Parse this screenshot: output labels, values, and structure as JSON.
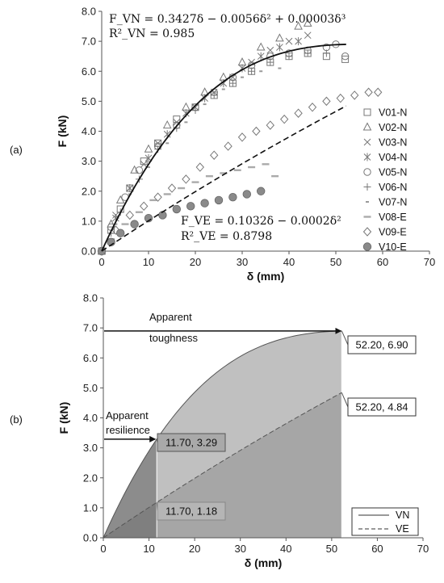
{
  "chart_data": [
    {
      "type": "scatter",
      "panel_label": "(a)",
      "xlabel": "δ (mm)",
      "ylabel": "F (kN)",
      "xlim": [
        0,
        70
      ],
      "ylim": [
        0,
        8
      ],
      "xticks": [
        "0",
        "10",
        "20",
        "30",
        "40",
        "50",
        "60",
        "70"
      ],
      "yticks": [
        "0.0",
        "1.0",
        "2.0",
        "3.0",
        "4.0",
        "5.0",
        "6.0",
        "7.0",
        "8.0"
      ],
      "legend_position": "right",
      "equations": {
        "vn_fit": "F_VN = 0.3427δ − 0.0056δ² + 0.00003δ³",
        "vn_r2": "R²_VN = 0.985",
        "ve_fit": "F_VE = 0.1032δ − 0.0002δ²",
        "ve_r2": "R²_VE = 0.8798"
      },
      "fit_lines": [
        {
          "style": "solid",
          "x_range": [
            0,
            52.2
          ],
          "coefficients": [
            0.3427,
            -0.0056,
            3e-05
          ]
        },
        {
          "style": "dashed",
          "x_range": [
            0,
            52.2
          ],
          "coefficients": [
            0.1032,
            -0.0002,
            0
          ]
        }
      ],
      "series": [
        {
          "name": "V01-N",
          "marker": "square",
          "x": [
            0,
            2,
            4,
            6,
            9,
            12,
            16,
            20,
            24,
            28,
            32,
            36,
            40,
            44,
            48,
            52
          ],
          "y": [
            0,
            0.7,
            1.4,
            2.1,
            3.0,
            3.6,
            4.4,
            4.8,
            5.2,
            5.6,
            6.0,
            6.3,
            6.5,
            6.6,
            6.5,
            6.4
          ]
        },
        {
          "name": "V02-N",
          "marker": "triangle",
          "x": [
            0,
            2,
            4,
            7,
            10,
            14,
            18,
            22,
            26,
            30,
            34,
            38,
            42,
            44
          ],
          "y": [
            0,
            0.9,
            1.7,
            2.7,
            3.4,
            4.2,
            4.8,
            5.3,
            5.8,
            6.3,
            6.8,
            7.1,
            7.5,
            7.6
          ]
        },
        {
          "name": "V03-N",
          "marker": "x",
          "x": [
            0,
            3,
            6,
            9,
            12,
            16,
            20,
            24,
            28,
            32,
            36,
            40,
            44
          ],
          "y": [
            0,
            1.2,
            2.1,
            2.9,
            3.6,
            4.3,
            4.8,
            5.3,
            5.8,
            6.3,
            6.7,
            7.0,
            7.2
          ]
        },
        {
          "name": "V04-N",
          "marker": "asterisk",
          "x": [
            0,
            3,
            6,
            10,
            14,
            18,
            22,
            26,
            30,
            34,
            38,
            42
          ],
          "y": [
            0,
            1.1,
            2.1,
            3.1,
            3.9,
            4.6,
            5.1,
            5.6,
            6.1,
            6.5,
            6.8,
            7.0
          ]
        },
        {
          "name": "V05-N",
          "marker": "circle",
          "x": [
            0,
            2,
            5,
            8,
            12,
            16,
            20,
            24,
            28,
            32,
            36,
            40,
            44,
            48,
            50,
            52
          ],
          "y": [
            0,
            0.8,
            1.8,
            2.7,
            3.5,
            4.2,
            4.8,
            5.3,
            5.8,
            6.2,
            6.5,
            6.6,
            6.7,
            6.8,
            6.9,
            6.5
          ]
        },
        {
          "name": "V06-N",
          "marker": "plus",
          "x": [
            0,
            2,
            4,
            8,
            12,
            16,
            20,
            24,
            28,
            32,
            36,
            40,
            44,
            48
          ],
          "y": [
            0,
            0.6,
            1.3,
            2.4,
            3.4,
            4.1,
            4.7,
            5.2,
            5.6,
            6.0,
            6.3,
            6.5,
            6.6,
            6.6
          ]
        },
        {
          "name": "V07-N",
          "marker": "dot",
          "x": [
            0,
            3,
            6,
            10,
            14,
            18,
            22,
            26,
            30,
            34,
            38
          ],
          "y": [
            0,
            0.9,
            1.9,
            2.8,
            3.6,
            4.3,
            4.9,
            5.4,
            5.8,
            6.0,
            6.1
          ]
        },
        {
          "name": "V08-E",
          "marker": "dash",
          "x": [
            0,
            2,
            5,
            8,
            11,
            14,
            17,
            20,
            23,
            26,
            29,
            32,
            35,
            37
          ],
          "y": [
            0,
            0.4,
            0.9,
            1.3,
            1.7,
            1.9,
            2.1,
            2.3,
            2.5,
            2.6,
            2.7,
            2.8,
            2.9,
            2.5
          ]
        },
        {
          "name": "V09-E",
          "marker": "diamond",
          "x": [
            0,
            3,
            6,
            9,
            12,
            15,
            18,
            21,
            24,
            27,
            30,
            33,
            36,
            39,
            42,
            45,
            48,
            51,
            54,
            57,
            59
          ],
          "y": [
            0,
            0.7,
            1.2,
            1.5,
            1.8,
            2.1,
            2.4,
            2.8,
            3.2,
            3.5,
            3.8,
            4.0,
            4.2,
            4.4,
            4.6,
            4.8,
            5.0,
            5.1,
            5.2,
            5.3,
            5.3
          ]
        },
        {
          "name": "V10-E",
          "marker": "filled-circle",
          "x": [
            0,
            2,
            4,
            7,
            10,
            13,
            16,
            19,
            22,
            25,
            28,
            31,
            34
          ],
          "y": [
            0,
            0.3,
            0.6,
            0.9,
            1.1,
            1.2,
            1.4,
            1.5,
            1.6,
            1.7,
            1.8,
            1.9,
            2.0
          ]
        }
      ]
    },
    {
      "type": "area",
      "panel_label": "(b)",
      "xlabel": "δ (mm)",
      "ylabel": "F (kN)",
      "xlim": [
        0,
        70
      ],
      "ylim": [
        0,
        8
      ],
      "xticks": [
        "0",
        "10",
        "20",
        "30",
        "40",
        "50",
        "60",
        "70"
      ],
      "yticks": [
        "0.0",
        "1.0",
        "2.0",
        "3.0",
        "4.0",
        "5.0",
        "6.0",
        "7.0",
        "8.0"
      ],
      "legend_position": "bottom-right",
      "series": [
        {
          "name": "VN",
          "style": "solid",
          "coefficients": [
            0.3427,
            -0.0056,
            3e-05
          ],
          "x_range": [
            0,
            52.2
          ]
        },
        {
          "name": "VE",
          "style": "dashed",
          "coefficients": [
            0.1032,
            -0.0002,
            0
          ],
          "x_range": [
            0,
            52.2
          ]
        }
      ],
      "annotations": {
        "toughness_text_1": "Apparent",
        "toughness_text_2": "toughness",
        "resilience_text_1": "Apparent",
        "resilience_text_2": "resilience",
        "pt_vn_end": "52.20, 6.90",
        "pt_ve_end": "52.20, 4.84",
        "pt_vn_res": "11.70, 3.29",
        "pt_ve_res": "11.70, 1.18"
      },
      "points": {
        "vn_end": [
          52.2,
          6.9
        ],
        "ve_end": [
          52.2,
          4.84
        ],
        "vn_res": [
          11.7,
          3.29
        ],
        "ve_res": [
          11.7,
          1.18
        ]
      },
      "colors": {
        "toughness_area": "#c0c0c0",
        "ve_area": "#a6a6a6",
        "resilience_area": "#8c8c8c",
        "resilience_ve_area": "#7f7f7f"
      }
    }
  ]
}
